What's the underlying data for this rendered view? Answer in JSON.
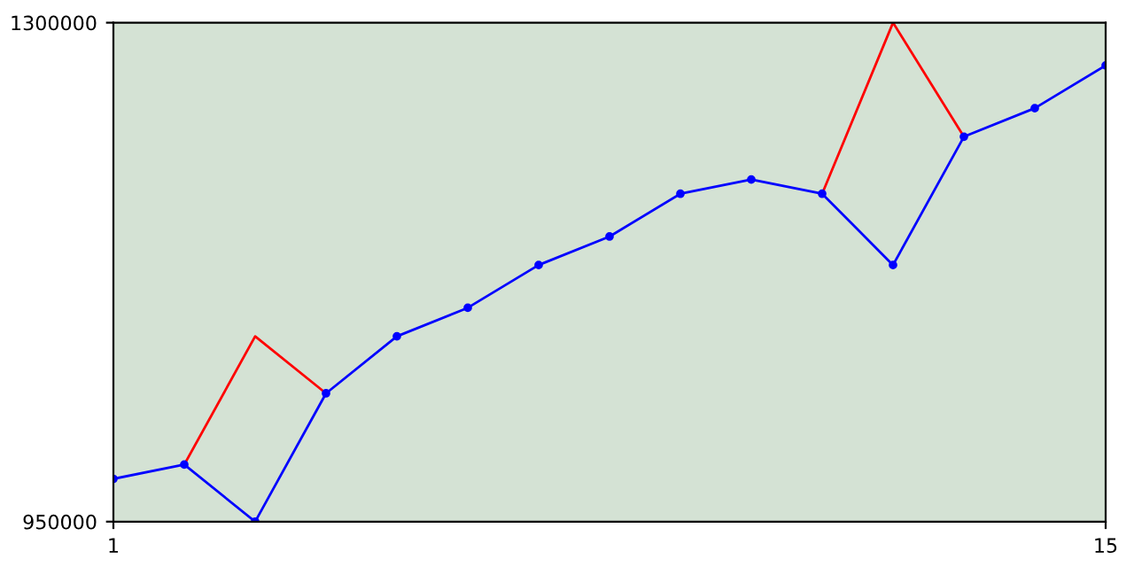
{
  "chart_data": {
    "type": "line",
    "x": [
      1,
      2,
      3,
      4,
      5,
      6,
      7,
      8,
      9,
      10,
      11,
      12,
      13,
      14,
      15
    ],
    "series": [
      {
        "color": "#ff0000",
        "marker": "none",
        "values": [
          null,
          990000,
          1080000,
          1040000,
          null,
          null,
          null,
          null,
          null,
          null,
          1180000,
          1300000,
          1220000,
          null,
          null
        ]
      },
      {
        "color": "#0000ff",
        "marker": "circle",
        "values": [
          980000,
          990000,
          950000,
          1040000,
          1080000,
          1100000,
          1130000,
          1150000,
          1180000,
          1190000,
          1180000,
          1130000,
          1220000,
          1240000,
          1270000
        ]
      }
    ],
    "xlim": [
      1,
      15
    ],
    "xticks": [
      1,
      15
    ],
    "ylim": [
      950000,
      1300000
    ],
    "yticks": [
      950000,
      1300000
    ],
    "grid": false,
    "legend": false
  }
}
